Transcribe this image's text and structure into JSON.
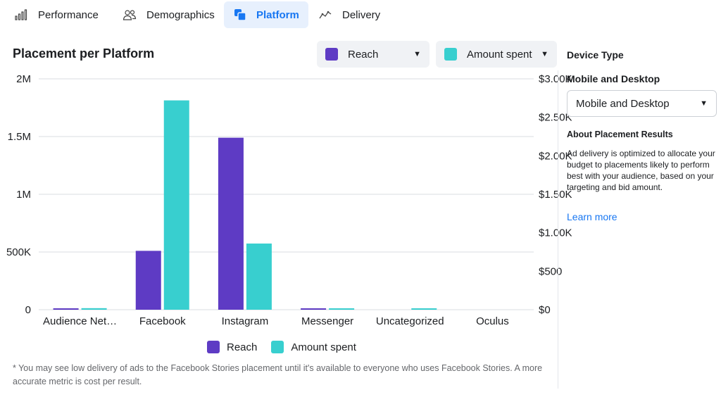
{
  "tabs": [
    {
      "label": "Performance",
      "icon": "bar-chart-icon"
    },
    {
      "label": "Demographics",
      "icon": "people-icon"
    },
    {
      "label": "Platform",
      "icon": "platform-icon",
      "active": true
    },
    {
      "label": "Delivery",
      "icon": "delivery-line-icon"
    }
  ],
  "chart_title": "Placement per Platform",
  "metric_dropdowns": {
    "reach": {
      "label": "Reach",
      "color": "#5e3bc4"
    },
    "amount": {
      "label": "Amount spent",
      "color": "#38cfcf"
    }
  },
  "chart_data": {
    "type": "bar",
    "categories": [
      "Audience Net…",
      "Facebook",
      "Instagram",
      "Messenger",
      "Uncategorized",
      "Oculus"
    ],
    "series": [
      {
        "name": "Reach",
        "axis": "left",
        "color": "#5e3bc4",
        "values": [
          5000,
          510000,
          1490000,
          10000,
          0,
          0
        ]
      },
      {
        "name": "Amount spent",
        "axis": "right",
        "color": "#38cfcf",
        "values": [
          20,
          2720,
          860,
          10,
          2,
          0
        ]
      }
    ],
    "left_axis": {
      "ticks": [
        0,
        500000,
        1000000,
        1500000,
        2000000
      ],
      "tick_labels": [
        "0",
        "500K",
        "1M",
        "1.5M",
        "2M"
      ],
      "ylim": [
        0,
        2000000
      ]
    },
    "right_axis": {
      "ticks": [
        0,
        500,
        1000,
        1500,
        2000,
        2500,
        3000
      ],
      "tick_labels": [
        "$0",
        "$500",
        "$1.00K",
        "$1.50K",
        "$2.00K",
        "$2.50K",
        "$3.00K"
      ],
      "ylim": [
        0,
        3000
      ]
    },
    "grid": true,
    "legend": "bottom-center"
  },
  "legend": {
    "reach": "Reach",
    "amount": "Amount spent"
  },
  "footnote": "* You may see low delivery of ads to the Facebook Stories placement until it's available to everyone who uses Facebook Stories. A more accurate metric is cost per result.",
  "panel": {
    "title": "Device Type",
    "subtitle": "Mobile and Desktop",
    "select_value": "Mobile and Desktop",
    "about_title": "About Placement Results",
    "about_text": "Ad delivery is optimized to allocate your budget to placements likely to perform best with your audience, based on your targeting and bid amount.",
    "learn_more": "Learn more"
  }
}
